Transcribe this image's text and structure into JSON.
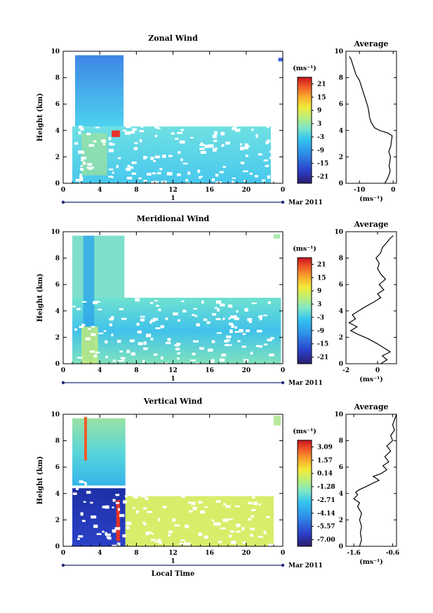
{
  "chart_data": [
    {
      "type": "heatmap",
      "title": "Zonal Wind",
      "ylabel": "Height (km)",
      "xlabel": "",
      "x_ticks": [
        "0",
        "4",
        "8",
        "12",
        "16",
        "20",
        "0"
      ],
      "ylim": [
        0,
        10
      ],
      "y_ticks": [
        "0",
        "2",
        "4",
        "6",
        "8",
        "10"
      ],
      "date_marker": "1",
      "date_label": "Mar 2011",
      "colorbar": {
        "unit": "(ms⁻¹)",
        "tick_labels": [
          "21",
          "15",
          "9",
          "3",
          "-3",
          "-9",
          "-15",
          "-21"
        ],
        "range": [
          -24,
          24
        ]
      },
      "average": {
        "title": "Average",
        "xlabel": "(ms⁻¹)",
        "x_ticks": [
          "-10",
          "0"
        ],
        "xlim": [
          -14,
          1
        ],
        "y_ticks": [
          "0",
          "2",
          "4",
          "6",
          "8",
          "10"
        ],
        "profile": [
          [
            -2.5,
            0.0
          ],
          [
            -2.0,
            0.2
          ],
          [
            -1.6,
            0.4
          ],
          [
            -1.3,
            0.6
          ],
          [
            -1.0,
            0.8
          ],
          [
            -0.9,
            1.0
          ],
          [
            -1.2,
            1.3
          ],
          [
            -1.0,
            1.6
          ],
          [
            -0.8,
            2.0
          ],
          [
            -1.3,
            2.4
          ],
          [
            -0.7,
            2.8
          ],
          [
            -0.5,
            3.2
          ],
          [
            -0.3,
            3.6
          ],
          [
            -1.5,
            3.8
          ],
          [
            -4.0,
            4.0
          ],
          [
            -5.5,
            4.2
          ],
          [
            -6.5,
            4.6
          ],
          [
            -7.0,
            5.0
          ],
          [
            -7.2,
            5.4
          ],
          [
            -7.5,
            5.8
          ],
          [
            -8.0,
            6.2
          ],
          [
            -8.5,
            6.6
          ],
          [
            -9.0,
            7.0
          ],
          [
            -9.5,
            7.4
          ],
          [
            -10.0,
            7.8
          ],
          [
            -11.0,
            8.2
          ],
          [
            -11.5,
            8.6
          ],
          [
            -12.0,
            9.0
          ],
          [
            -12.5,
            9.4
          ],
          [
            -13.0,
            9.6
          ]
        ]
      }
    },
    {
      "type": "heatmap",
      "title": "Meridional Wind",
      "ylabel": "Height (km)",
      "xlabel": "",
      "x_ticks": [
        "0",
        "4",
        "8",
        "12",
        "16",
        "20",
        "0"
      ],
      "ylim": [
        0,
        10
      ],
      "y_ticks": [
        "0",
        "2",
        "4",
        "6",
        "8",
        "10"
      ],
      "date_marker": "1",
      "date_label": "Mar 2011",
      "colorbar": {
        "unit": "(ms⁻¹)",
        "tick_labels": [
          "21",
          "15",
          "9",
          "3",
          "-3",
          "-9",
          "-15",
          "-21"
        ],
        "range": [
          -24,
          24
        ]
      },
      "average": {
        "title": "Average",
        "xlabel": "(ms⁻¹)",
        "x_ticks": [
          "-2",
          "0"
        ],
        "xlim": [
          -2,
          1.2
        ],
        "y_ticks": [
          "0",
          "2",
          "4",
          "6",
          "8",
          "10"
        ],
        "profile": [
          [
            0.2,
            0.0
          ],
          [
            0.6,
            0.3
          ],
          [
            0.3,
            0.6
          ],
          [
            0.8,
            0.9
          ],
          [
            0.4,
            1.2
          ],
          [
            0.0,
            1.5
          ],
          [
            -0.6,
            1.9
          ],
          [
            -1.2,
            2.2
          ],
          [
            -1.7,
            2.5
          ],
          [
            -1.3,
            2.8
          ],
          [
            -1.8,
            3.1
          ],
          [
            -1.4,
            3.4
          ],
          [
            -1.6,
            3.7
          ],
          [
            -1.2,
            4.0
          ],
          [
            -0.8,
            4.3
          ],
          [
            -0.2,
            4.7
          ],
          [
            0.2,
            5.0
          ],
          [
            0.0,
            5.3
          ],
          [
            0.4,
            5.6
          ],
          [
            0.1,
            6.0
          ],
          [
            0.5,
            6.4
          ],
          [
            0.2,
            6.8
          ],
          [
            0.0,
            7.2
          ],
          [
            0.1,
            7.6
          ],
          [
            -0.1,
            8.0
          ],
          [
            0.2,
            8.4
          ],
          [
            0.3,
            8.8
          ],
          [
            0.6,
            9.2
          ],
          [
            0.8,
            9.5
          ],
          [
            1.0,
            9.7
          ]
        ]
      }
    },
    {
      "type": "heatmap",
      "title": "Vertical Wind",
      "ylabel": "Height (km)",
      "xlabel": "Local Time",
      "x_ticks": [
        "0",
        "4",
        "8",
        "12",
        "16",
        "20",
        "0"
      ],
      "ylim": [
        0,
        10
      ],
      "y_ticks": [
        "0",
        "2",
        "4",
        "6",
        "8",
        "10"
      ],
      "date_marker": "1",
      "date_label": "Mar 2011",
      "colorbar": {
        "unit": "(ms⁻¹)",
        "tick_labels": [
          "3.09",
          "1.57",
          "0.14",
          "-1.28",
          "-2.71",
          "-4.14",
          "-5.57",
          "-7.00"
        ],
        "range": [
          -7.7,
          3.8
        ]
      },
      "average": {
        "title": "Average",
        "xlabel": "(ms⁻¹)",
        "x_ticks": [
          "-1.6",
          "-0.6"
        ],
        "xlim": [
          -1.8,
          -0.5
        ],
        "y_ticks": [
          "0",
          "2",
          "4",
          "6",
          "8",
          "10"
        ],
        "profile": [
          [
            -1.45,
            0.0
          ],
          [
            -1.4,
            0.5
          ],
          [
            -1.43,
            1.0
          ],
          [
            -1.4,
            1.5
          ],
          [
            -1.45,
            2.0
          ],
          [
            -1.4,
            2.5
          ],
          [
            -1.5,
            3.0
          ],
          [
            -1.45,
            3.3
          ],
          [
            -1.6,
            3.6
          ],
          [
            -1.5,
            3.9
          ],
          [
            -1.55,
            4.1
          ],
          [
            -1.45,
            4.3
          ],
          [
            -1.3,
            4.5
          ],
          [
            -1.1,
            4.8
          ],
          [
            -0.95,
            5.0
          ],
          [
            -1.1,
            5.3
          ],
          [
            -0.9,
            5.5
          ],
          [
            -0.75,
            5.8
          ],
          [
            -0.85,
            6.1
          ],
          [
            -0.7,
            6.4
          ],
          [
            -0.8,
            6.8
          ],
          [
            -0.65,
            7.2
          ],
          [
            -0.75,
            7.6
          ],
          [
            -0.6,
            8.0
          ],
          [
            -0.65,
            8.4
          ],
          [
            -0.55,
            8.8
          ],
          [
            -0.6,
            9.2
          ],
          [
            -0.55,
            9.6
          ],
          [
            -0.5,
            10.0
          ]
        ]
      }
    }
  ]
}
